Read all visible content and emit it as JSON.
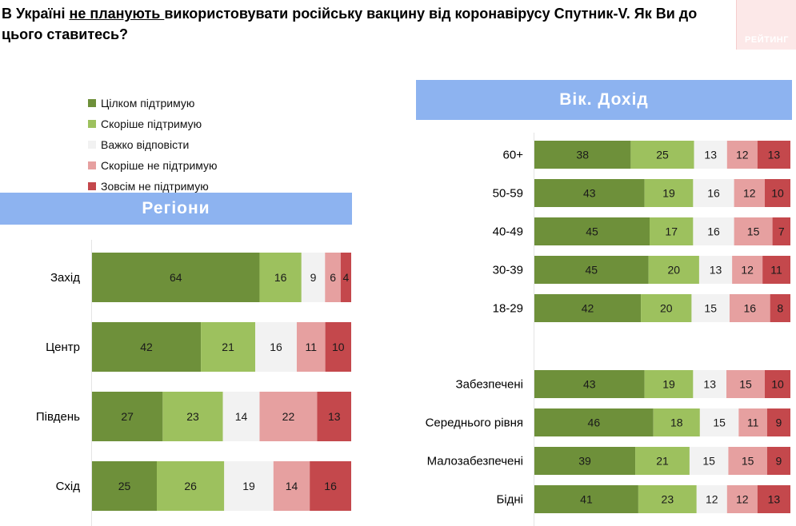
{
  "title": {
    "part1": "В Україні ",
    "underlined": "не планують ",
    "part2": "використовувати російську вакцину від коронавірусу Спутник-V. Як Ви до цього ставитесь?"
  },
  "logo_text": "РЕЙТИНГ",
  "colors": {
    "full_support": "#6e903a",
    "rather_support": "#9dc15e",
    "hard_to_say": "#f2f2f2",
    "rather_not": "#e6a0a0",
    "not_at_all": "#c4484c"
  },
  "chart_data": [
    {
      "type": "bar",
      "orientation": "horizontal-stacked",
      "title": "Регіони",
      "categories": [
        "Захід",
        "Центр",
        "Південь",
        "Схід"
      ],
      "series": [
        {
          "name": "Цілком підтримую",
          "values": [
            64,
            42,
            27,
            25
          ]
        },
        {
          "name": "Скоріше підтримую",
          "values": [
            16,
            21,
            23,
            26
          ]
        },
        {
          "name": "Важко відповісти",
          "values": [
            9,
            16,
            14,
            19
          ]
        },
        {
          "name": "Скоріше не підтримую",
          "values": [
            6,
            11,
            22,
            14
          ]
        },
        {
          "name": "Зовсім не підтримую",
          "values": [
            4,
            10,
            13,
            16
          ]
        }
      ],
      "legend_position": "top-left"
    },
    {
      "type": "bar",
      "orientation": "horizontal-stacked",
      "title": "Вік. Дохід",
      "categories": [
        "60+",
        "50-59",
        "40-49",
        "30-39",
        "18-29",
        "Забезпечені",
        "Середнього рівня",
        "Малозабезпечені",
        "Бідні"
      ],
      "series": [
        {
          "name": "Цілком підтримую",
          "values": [
            38,
            43,
            45,
            45,
            42,
            43,
            46,
            39,
            41
          ]
        },
        {
          "name": "Скоріше підтримую",
          "values": [
            25,
            19,
            17,
            20,
            20,
            19,
            18,
            21,
            23
          ]
        },
        {
          "name": "Важко відповісти",
          "values": [
            13,
            16,
            16,
            13,
            15,
            13,
            15,
            15,
            12
          ]
        },
        {
          "name": "Скоріше не підтримую",
          "values": [
            12,
            12,
            15,
            12,
            16,
            15,
            11,
            15,
            12
          ]
        },
        {
          "name": "Зовсім не підтримую",
          "values": [
            13,
            10,
            7,
            11,
            8,
            10,
            9,
            9,
            13
          ]
        }
      ]
    }
  ]
}
